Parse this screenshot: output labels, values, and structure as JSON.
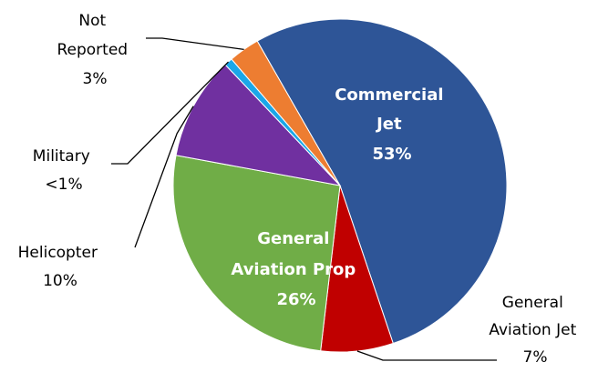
{
  "chart_data": {
    "type": "pie",
    "title": "",
    "slices": [
      {
        "name_lines": [
          "Commercial",
          "Jet"
        ],
        "value": 53,
        "label": "53%",
        "color": "#2E5597",
        "label_position": "inside"
      },
      {
        "name_lines": [
          "General",
          "Aviation Jet"
        ],
        "value": 7,
        "label": "7%",
        "color": "#C00000",
        "label_position": "outside"
      },
      {
        "name_lines": [
          "General",
          "Aviation Prop"
        ],
        "value": 26,
        "label": "26%",
        "color": "#70AD47",
        "label_position": "inside"
      },
      {
        "name_lines": [
          "Helicopter"
        ],
        "value": 10,
        "label": "10%",
        "color": "#7030A0",
        "label_position": "outside"
      },
      {
        "name_lines": [
          "Military"
        ],
        "value": 0.8,
        "label": "<1%",
        "color": "#1AA7E8",
        "label_position": "outside"
      },
      {
        "name_lines": [
          "Not",
          "Reported"
        ],
        "value": 3,
        "label": "3%",
        "color": "#ED7D31",
        "label_position": "outside"
      }
    ]
  }
}
